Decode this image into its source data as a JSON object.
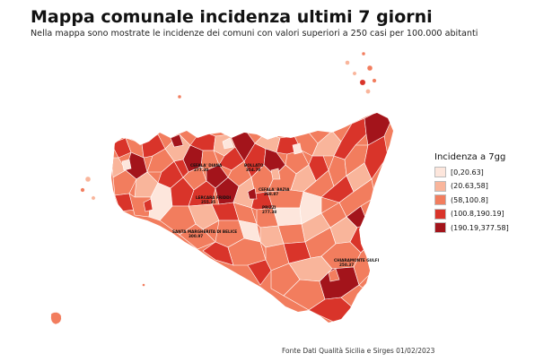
{
  "title": "Mappa comunale incidenza ultimi 7 giorni",
  "subtitle": "Nella mappa sono mostrate le incidenze dei comuni con valori superiori a 250 casi per 100.000 abitanti",
  "legend": {
    "title": "Incidenza a 7gg",
    "items": [
      {
        "label": "[0,20.63]",
        "color": "#fde6dc"
      },
      {
        "label": "(20.63,58]",
        "color": "#f9b59b"
      },
      {
        "label": "(58,100.8]",
        "color": "#f27d5e"
      },
      {
        "label": "(100.8,190.19]",
        "color": "#d9342a"
      },
      {
        "label": "(190.19,377.58]",
        "color": "#a3141b"
      }
    ]
  },
  "map_labels": [
    {
      "name": "CEFALA' DIANA",
      "value": "277.30"
    },
    {
      "name": "BOLLATO",
      "value": "354.70"
    },
    {
      "name": "CEFALA' BAZIA",
      "value": "268.87"
    },
    {
      "name": "LERCARA FRIDDI",
      "value": "255.35"
    },
    {
      "name": "PRIZZI",
      "value": "277.38"
    },
    {
      "name": "SANTA MARGHERITA DI BELICE",
      "value": "300.97"
    },
    {
      "name": "CHIARAMONTE GULFI",
      "value": "250.37"
    }
  ],
  "source": "Fonte Dati Qualità Sicilia e Sirges 01/02/2023"
}
